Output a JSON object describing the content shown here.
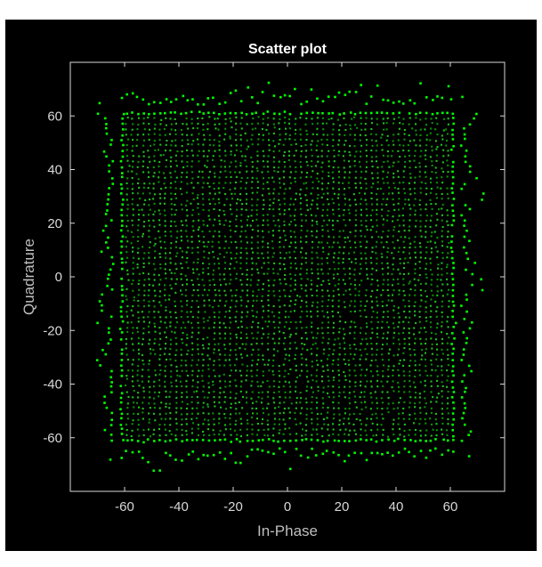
{
  "chart_data": {
    "type": "scatter",
    "title": "Scatter plot",
    "xlabel": "In-Phase",
    "ylabel": "Quadrature",
    "xlim": [
      -80,
      80
    ],
    "ylim": [
      -80,
      80
    ],
    "xticks": [
      -60,
      -40,
      -20,
      0,
      20,
      40,
      60
    ],
    "yticks": [
      -60,
      -40,
      -20,
      0,
      20,
      40,
      60
    ],
    "grid": false,
    "colors": {
      "background": "#000000",
      "axes": "#d9d9d9",
      "points": "#00ff00",
      "title": "#ffffff"
    },
    "series": [
      {
        "constellation": "square grid, -63 to 63 in steps of 2 (64 x 64 = 4096 points), with noise spread concentrated at the edges",
        "x_range": [
          -71,
          71
        ],
        "y_range": [
          -73,
          75
        ]
      }
    ]
  }
}
